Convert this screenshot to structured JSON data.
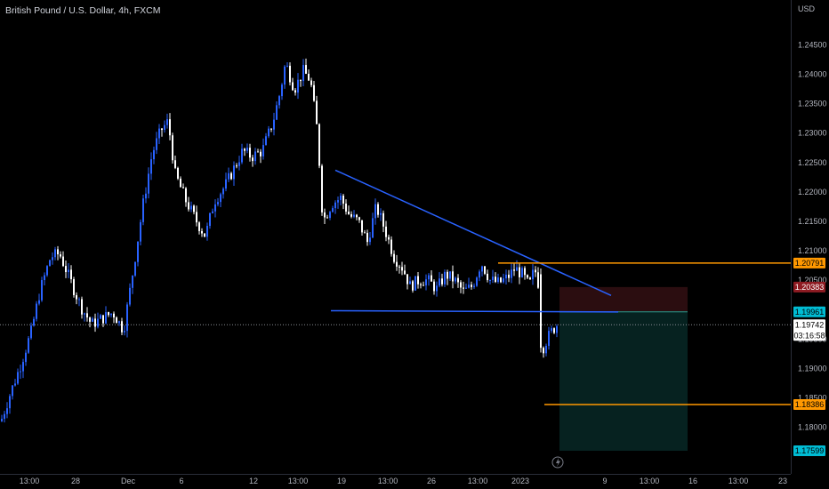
{
  "header": {
    "symbol_title": "British Pound / U.S. Dollar, 4h, FXCM"
  },
  "price_axis": {
    "currency": "USD",
    "tick_labels": [
      "1.24500",
      "1.24000",
      "1.23500",
      "1.23000",
      "1.22500",
      "1.22000",
      "1.21500",
      "1.21000",
      "1.20500",
      "1.19500",
      "1.19000",
      "1.18500",
      "1.18000"
    ]
  },
  "time_axis": {
    "labels": [
      "13:00",
      "28",
      "Dec",
      "6",
      "12",
      "13:00",
      "19",
      "13:00",
      "26",
      "13:00",
      "2023",
      "9",
      "13:00",
      "16",
      "13:00",
      "23"
    ]
  },
  "price_tags": {
    "upper_level": "1.20791",
    "stop_zone": "1.20383",
    "entry": "1.19961",
    "last_price": "1.19742",
    "countdown": "03:16:58",
    "lower_level": "1.18386",
    "target": "1.17599"
  },
  "colors": {
    "background": "#000000",
    "candle_up": "#2962ff",
    "candle_down": "#ffffff",
    "trendline": "#2962ff",
    "level_line": "#ff9800",
    "stop_zone_fill": "#2b0d10",
    "target_zone_fill": "#062220",
    "entry_tag": "#00bcd4",
    "stop_tag": "#8e1b22",
    "level_tag": "#ff9800"
  },
  "icons": {
    "bottom_marker": "lightning-bolt-icon"
  },
  "chart_data": {
    "type": "candlestick",
    "title": "British Pound / U.S. Dollar, 4h, FXCM",
    "ylabel": "USD",
    "ylim": [
      1.1735,
      1.2515
    ],
    "x_tick_labels": [
      "13:00",
      "28",
      "Dec",
      "6",
      "12",
      "13:00",
      "19",
      "13:00",
      "26",
      "13:00",
      "2023",
      "9",
      "13:00",
      "16",
      "13:00",
      "23"
    ],
    "close_path": [
      [
        0,
        1.181
      ],
      [
        10,
        1.1855
      ],
      [
        22,
        1.1905
      ],
      [
        34,
        1.1962
      ],
      [
        44,
        1.2032
      ],
      [
        56,
        1.209
      ],
      [
        66,
        1.2095
      ],
      [
        78,
        1.205
      ],
      [
        90,
        1.2005
      ],
      [
        102,
        1.1975
      ],
      [
        114,
        1.1985
      ],
      [
        126,
        1.1995
      ],
      [
        138,
        1.1965
      ],
      [
        150,
        1.208
      ],
      [
        160,
        1.218
      ],
      [
        170,
        1.2265
      ],
      [
        180,
        1.2305
      ],
      [
        188,
        1.232
      ],
      [
        196,
        1.223
      ],
      [
        208,
        1.2185
      ],
      [
        220,
        1.215
      ],
      [
        230,
        1.2125
      ],
      [
        240,
        1.2185
      ],
      [
        252,
        1.221
      ],
      [
        262,
        1.224
      ],
      [
        272,
        1.227
      ],
      [
        282,
        1.226
      ],
      [
        294,
        1.227
      ],
      [
        306,
        1.232
      ],
      [
        314,
        1.237
      ],
      [
        320,
        1.242
      ],
      [
        330,
        1.2375
      ],
      [
        340,
        1.2405
      ],
      [
        348,
        1.239
      ],
      [
        356,
        1.23
      ],
      [
        362,
        1.215
      ],
      [
        372,
        1.218
      ],
      [
        382,
        1.219
      ],
      [
        392,
        1.216
      ],
      [
        402,
        1.215
      ],
      [
        412,
        1.2115
      ],
      [
        422,
        1.2175
      ],
      [
        432,
        1.2135
      ],
      [
        442,
        1.209
      ],
      [
        452,
        1.207
      ],
      [
        460,
        1.204
      ],
      [
        470,
        1.205
      ],
      [
        480,
        1.205
      ],
      [
        490,
        1.2035
      ],
      [
        500,
        1.206
      ],
      [
        510,
        1.205
      ],
      [
        520,
        1.203
      ],
      [
        530,
        1.204
      ],
      [
        540,
        1.208
      ],
      [
        550,
        1.205
      ],
      [
        560,
        1.2045
      ],
      [
        570,
        1.2055
      ],
      [
        578,
        1.207
      ],
      [
        586,
        1.206
      ],
      [
        594,
        1.204
      ],
      [
        600,
        1.207
      ],
      [
        605,
        1.204
      ],
      [
        608,
        1.193
      ],
      [
        614,
        1.195
      ],
      [
        620,
        1.1965
      ],
      [
        625,
        1.1974
      ]
    ],
    "trendlines": [
      {
        "from": [
          377,
          1.2237
        ],
        "to": [
          687,
          1.2024
        ]
      },
      {
        "from": [
          372,
          1.1998
        ],
        "to": [
          695,
          1.1996
        ]
      }
    ],
    "horizontal_levels": [
      {
        "value": 1.20791,
        "x_start": 560
      },
      {
        "value": 1.18386,
        "x_start": 612
      }
    ],
    "position_tool": {
      "entry": 1.19961,
      "stop": 1.20383,
      "target": 1.17599,
      "x_start": 629,
      "x_end": 773
    },
    "last_price": 1.19742
  }
}
